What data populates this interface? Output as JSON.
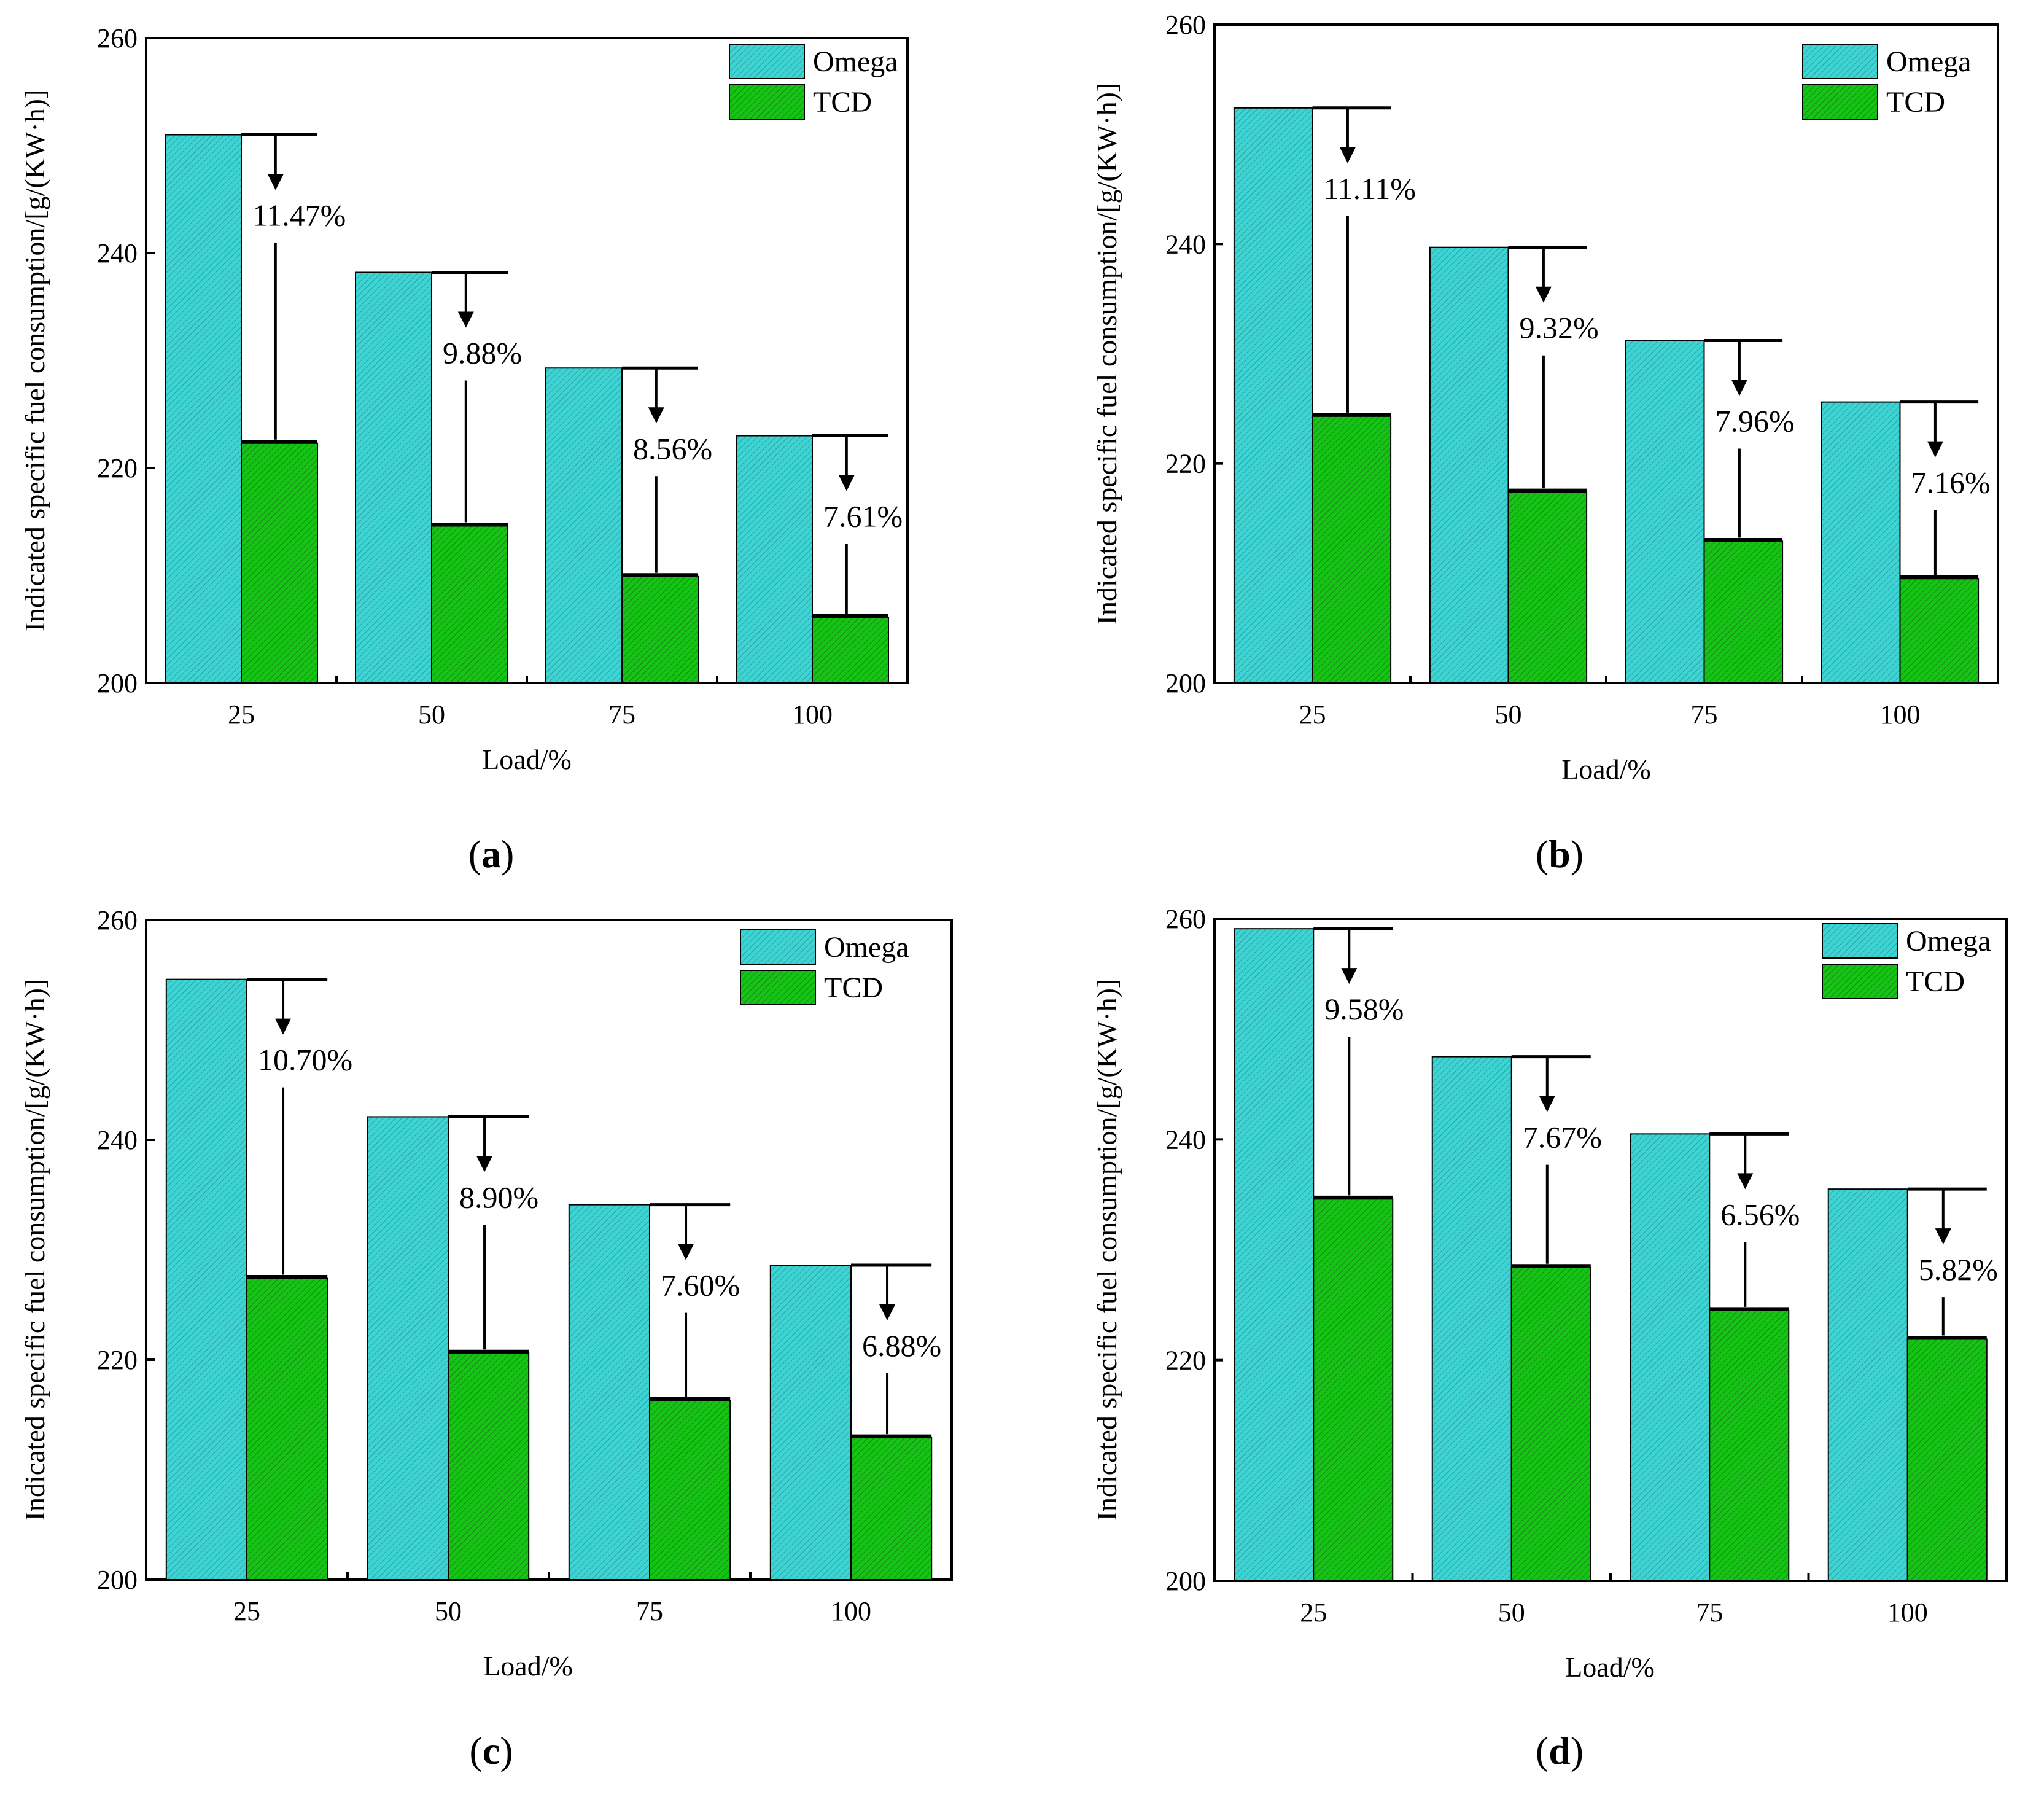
{
  "colors": {
    "omega": "#3fd4d4",
    "tcd": "#16c416",
    "axis": "#000000"
  },
  "chart_data": [
    {
      "type": "bar",
      "caption": "(a)",
      "caption_letter": "a",
      "xlabel": "Load/%",
      "ylabel": "Indicated specific fuel consumption/[g/(KW·h)]",
      "ylim": [
        200,
        260
      ],
      "yticks": [
        200,
        220,
        240,
        260
      ],
      "categories": [
        "25",
        "50",
        "75",
        "100"
      ],
      "legend": [
        "Omega",
        "TCD"
      ],
      "series": [
        {
          "name": "Omega",
          "values": [
            251.0,
            238.2,
            229.3,
            223.0
          ]
        },
        {
          "name": "TCD",
          "values": [
            222.3,
            214.6,
            209.9,
            206.1
          ]
        }
      ],
      "annotations": [
        "11.47%",
        "9.88%",
        "8.56%",
        "7.61%"
      ]
    },
    {
      "type": "bar",
      "caption": "(b)",
      "caption_letter": "b",
      "xlabel": "Load/%",
      "ylabel": "Indicated specific fuel consumption/[g/(KW·h)]",
      "ylim": [
        200,
        260
      ],
      "yticks": [
        200,
        220,
        240,
        260
      ],
      "categories": [
        "25",
        "50",
        "75",
        "100"
      ],
      "legend": [
        "Omega",
        "TCD"
      ],
      "series": [
        {
          "name": "Omega",
          "values": [
            252.4,
            239.7,
            231.2,
            225.6
          ]
        },
        {
          "name": "TCD",
          "values": [
            224.3,
            217.4,
            212.9,
            209.5
          ]
        }
      ],
      "annotations": [
        "11.11%",
        "9.32%",
        "7.96%",
        "7.16%"
      ]
    },
    {
      "type": "bar",
      "caption": "(c)",
      "caption_letter": "c",
      "xlabel": "Load/%",
      "ylabel": "Indicated specific fuel consumption/[g/(KW·h)]",
      "ylim": [
        200,
        260
      ],
      "yticks": [
        200,
        220,
        240,
        260
      ],
      "categories": [
        "25",
        "50",
        "75",
        "100"
      ],
      "legend": [
        "Omega",
        "TCD"
      ],
      "series": [
        {
          "name": "Omega",
          "values": [
            254.6,
            242.1,
            234.1,
            228.6
          ]
        },
        {
          "name": "TCD",
          "values": [
            227.4,
            220.6,
            216.3,
            212.9
          ]
        }
      ],
      "annotations": [
        "10.70%",
        "8.90%",
        "7.60%",
        "6.88%"
      ]
    },
    {
      "type": "bar",
      "caption": "(d)",
      "caption_letter": "d",
      "xlabel": "Load/%",
      "ylabel": "Indicated specific fuel consumption/[g/(KW·h)]",
      "ylim": [
        200,
        260
      ],
      "yticks": [
        200,
        220,
        240,
        260
      ],
      "categories": [
        "25",
        "50",
        "75",
        "100"
      ],
      "legend": [
        "Omega",
        "TCD"
      ],
      "series": [
        {
          "name": "Omega",
          "values": [
            259.1,
            247.5,
            240.5,
            235.5
          ]
        },
        {
          "name": "TCD",
          "values": [
            234.6,
            228.4,
            224.5,
            221.9
          ]
        }
      ],
      "annotations": [
        "9.58%",
        "7.67%",
        "6.56%",
        "5.82%"
      ]
    }
  ]
}
